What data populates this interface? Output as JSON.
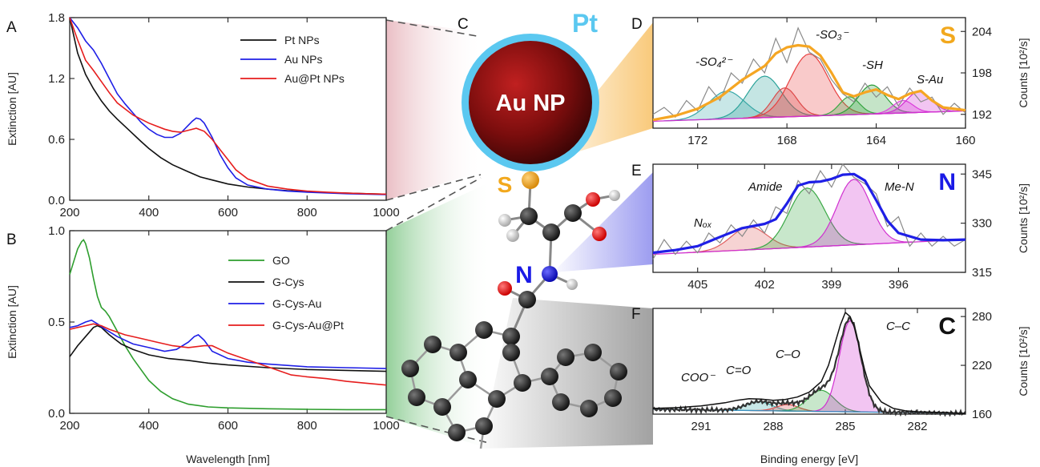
{
  "panels": {
    "A": "A",
    "B": "B",
    "C": "C",
    "D": "D",
    "E": "E",
    "F": "F"
  },
  "schematic": {
    "core_label": "Au NP",
    "shell_label": "Pt",
    "sulfur_label": "S",
    "nitrogen_label": "N",
    "colors": {
      "core": "#8b1010",
      "shell": "#5bc8f0",
      "sulfur": "#f2a81d",
      "nitrogen": "#1a1ae6",
      "oxygen": "#e61515",
      "carbon": "#2a2a2a",
      "hydrogen": "#d9d9d9"
    }
  },
  "chart_data": [
    {
      "id": "A",
      "type": "line",
      "xlabel": "",
      "ylabel": "Extinction [AU]",
      "xlim": [
        200,
        1000
      ],
      "ylim": [
        0,
        1.8
      ],
      "xticks": [
        200,
        400,
        600,
        800,
        1000
      ],
      "yticks": [
        0.0,
        0.6,
        1.2,
        1.8
      ],
      "ytick_labels": [
        "0.0",
        "0.6",
        "1.2",
        "1.8"
      ],
      "legend_position": "top-right",
      "series": [
        {
          "name": "Pt NPs",
          "color": "#111111",
          "x": [
            200,
            220,
            240,
            260,
            280,
            300,
            320,
            350,
            380,
            400,
            430,
            460,
            500,
            530,
            560,
            600,
            650,
            700,
            750,
            800,
            850,
            900,
            950,
            1000
          ],
          "y": [
            1.8,
            1.45,
            1.24,
            1.1,
            0.98,
            0.88,
            0.8,
            0.69,
            0.58,
            0.51,
            0.42,
            0.35,
            0.28,
            0.23,
            0.2,
            0.16,
            0.13,
            0.11,
            0.095,
            0.085,
            0.075,
            0.07,
            0.065,
            0.06
          ]
        },
        {
          "name": "Au NPs",
          "color": "#1f1fe6",
          "x": [
            200,
            220,
            240,
            260,
            280,
            300,
            320,
            340,
            360,
            380,
            400,
            420,
            440,
            460,
            480,
            500,
            510,
            520,
            530,
            540,
            560,
            580,
            600,
            620,
            650,
            700,
            750,
            800,
            900,
            1000
          ],
          "y": [
            1.8,
            1.7,
            1.57,
            1.48,
            1.35,
            1.2,
            1.05,
            0.95,
            0.86,
            0.77,
            0.7,
            0.65,
            0.62,
            0.62,
            0.66,
            0.74,
            0.78,
            0.81,
            0.8,
            0.76,
            0.62,
            0.45,
            0.32,
            0.22,
            0.15,
            0.11,
            0.09,
            0.08,
            0.065,
            0.055
          ]
        },
        {
          "name": "Au@Pt NPs",
          "color": "#e61d1d",
          "x": [
            200,
            220,
            240,
            260,
            280,
            300,
            320,
            340,
            360,
            380,
            400,
            420,
            440,
            460,
            480,
            500,
            520,
            540,
            560,
            580,
            600,
            620,
            650,
            700,
            750,
            800,
            850,
            900,
            950,
            1000
          ],
          "y": [
            1.8,
            1.58,
            1.38,
            1.28,
            1.17,
            1.06,
            0.96,
            0.9,
            0.84,
            0.8,
            0.76,
            0.73,
            0.7,
            0.68,
            0.67,
            0.69,
            0.71,
            0.68,
            0.6,
            0.5,
            0.4,
            0.3,
            0.21,
            0.14,
            0.11,
            0.09,
            0.08,
            0.07,
            0.065,
            0.06
          ]
        }
      ]
    },
    {
      "id": "B",
      "type": "line",
      "xlabel": "Wavelength [nm]",
      "ylabel": "Extinction [AU]",
      "xlim": [
        200,
        1000
      ],
      "ylim": [
        0,
        1.0
      ],
      "xticks": [
        200,
        400,
        600,
        800,
        1000
      ],
      "yticks": [
        0.0,
        0.5,
        1.0
      ],
      "ytick_labels": [
        "0.0",
        "0.5",
        "1.0"
      ],
      "legend_position": "right",
      "series": [
        {
          "name": "GO",
          "color": "#2e9e2e",
          "x": [
            200,
            210,
            220,
            230,
            235,
            240,
            250,
            260,
            270,
            280,
            290,
            300,
            320,
            340,
            360,
            380,
            400,
            430,
            460,
            500,
            550,
            600,
            700,
            800,
            900,
            1000
          ],
          "y": [
            0.76,
            0.83,
            0.9,
            0.94,
            0.95,
            0.93,
            0.85,
            0.74,
            0.64,
            0.58,
            0.56,
            0.53,
            0.45,
            0.37,
            0.3,
            0.24,
            0.18,
            0.12,
            0.08,
            0.05,
            0.035,
            0.03,
            0.025,
            0.022,
            0.02,
            0.02
          ]
        },
        {
          "name": "G-Cys",
          "color": "#111111",
          "x": [
            200,
            220,
            240,
            260,
            270,
            280,
            300,
            330,
            360,
            400,
            450,
            500,
            550,
            600,
            700,
            800,
            900,
            1000
          ],
          "y": [
            0.31,
            0.37,
            0.42,
            0.47,
            0.48,
            0.47,
            0.43,
            0.38,
            0.35,
            0.32,
            0.3,
            0.29,
            0.275,
            0.265,
            0.25,
            0.24,
            0.235,
            0.23
          ]
        },
        {
          "name": "G-Cys-Au",
          "color": "#1f1fe6",
          "x": [
            200,
            220,
            240,
            255,
            270,
            290,
            320,
            360,
            400,
            440,
            470,
            500,
            515,
            525,
            540,
            560,
            600,
            650,
            700,
            800,
            900,
            1000
          ],
          "y": [
            0.47,
            0.48,
            0.5,
            0.51,
            0.49,
            0.46,
            0.42,
            0.38,
            0.36,
            0.34,
            0.35,
            0.39,
            0.42,
            0.43,
            0.4,
            0.34,
            0.3,
            0.28,
            0.27,
            0.255,
            0.25,
            0.245
          ]
        },
        {
          "name": "G-Cys-Au@Pt",
          "color": "#e61d1d",
          "x": [
            200,
            220,
            240,
            260,
            280,
            300,
            340,
            380,
            420,
            460,
            500,
            540,
            560,
            580,
            600,
            640,
            680,
            720,
            760,
            800,
            850,
            900,
            950,
            1000
          ],
          "y": [
            0.46,
            0.47,
            0.48,
            0.49,
            0.48,
            0.46,
            0.43,
            0.41,
            0.39,
            0.37,
            0.36,
            0.37,
            0.37,
            0.35,
            0.33,
            0.3,
            0.27,
            0.24,
            0.21,
            0.2,
            0.19,
            0.175,
            0.165,
            0.155
          ]
        }
      ]
    },
    {
      "id": "D",
      "type": "line",
      "xlabel": "",
      "ylabel": "Counts [10²/s]",
      "xlim": [
        174,
        160
      ],
      "ylim": [
        190,
        206
      ],
      "xticks": [
        172,
        168,
        164,
        160
      ],
      "yticks": [
        192,
        198,
        204
      ],
      "element_label": "S",
      "annotations": [
        "-SO₄²⁻",
        "-SO₃⁻",
        "-SH",
        "S-Au"
      ],
      "background": {
        "x": [
          174,
          160
        ],
        "y": [
          191.0,
          192.5
        ]
      },
      "envelope": {
        "color": "#f5a623",
        "x": [
          174,
          173,
          172,
          171,
          170,
          169,
          168.5,
          168,
          167.5,
          167,
          166.5,
          166,
          165.5,
          165,
          164.5,
          164,
          163.5,
          163,
          162.5,
          162,
          161.5,
          161,
          160
        ],
        "y": [
          191.2,
          191.8,
          192.8,
          194.5,
          197,
          199,
          200.8,
          201.7,
          202,
          201.8,
          200.5,
          198,
          195.2,
          194.6,
          195.2,
          195.6,
          194.8,
          194.2,
          195,
          195.4,
          194,
          193,
          192.6
        ]
      },
      "peaks": [
        {
          "center": 170.7,
          "sigma": 0.8,
          "height": 4.0,
          "color": "#3aa8a8"
        },
        {
          "center": 169.0,
          "sigma": 0.75,
          "height": 6.0,
          "color": "#2ca39a"
        },
        {
          "center": 168.1,
          "sigma": 0.55,
          "height": 4.2,
          "color": "#d94a4a"
        },
        {
          "center": 167.0,
          "sigma": 0.85,
          "height": 9.0,
          "color": "#e84040"
        },
        {
          "center": 165.2,
          "sigma": 0.45,
          "height": 2.6,
          "color": "#3aa845"
        },
        {
          "center": 164.2,
          "sigma": 0.6,
          "height": 4.2,
          "color": "#2e9e3a"
        },
        {
          "center": 162.8,
          "sigma": 0.45,
          "height": 1.8,
          "color": "#e040e0"
        },
        {
          "center": 162.1,
          "sigma": 0.55,
          "height": 3.0,
          "color": "#d030d0"
        }
      ],
      "raw": {
        "color": "#8a8a8a",
        "x": [
          174,
          173.5,
          173,
          172.5,
          172,
          171.5,
          171,
          170.5,
          170,
          169.5,
          169,
          168.5,
          168,
          167.5,
          167,
          166.5,
          166,
          165.5,
          165,
          164.5,
          164,
          163.5,
          163,
          162.5,
          162,
          161.5,
          161,
          160.5,
          160
        ],
        "y": [
          192,
          193,
          191.6,
          194,
          192.5,
          196,
          194,
          198,
          196.5,
          200,
          198,
          203,
          199.5,
          204.5,
          201,
          200,
          197,
          195,
          193.8,
          196.5,
          194.5,
          196,
          193.2,
          195.8,
          193.8,
          194.5,
          192,
          193.6,
          192.2
        ]
      }
    },
    {
      "id": "E",
      "type": "line",
      "xlabel": "",
      "ylabel": "Counts [10²/s]",
      "xlim": [
        407,
        393
      ],
      "ylim": [
        315,
        348
      ],
      "xticks": [
        405,
        402,
        399,
        396
      ],
      "yticks": [
        315,
        330,
        345
      ],
      "element_label": "N",
      "annotations": [
        "Nₒₓ",
        "Amide",
        "Me-N"
      ],
      "background": {
        "x": [
          407,
          393
        ],
        "y": [
          320.5,
          325
        ]
      },
      "envelope": {
        "color": "#1f1fe6",
        "x": [
          407,
          406,
          405,
          404,
          403,
          402,
          401.5,
          401,
          400.5,
          400,
          399.5,
          399,
          398.5,
          398,
          397.5,
          397,
          396.5,
          396,
          395,
          394,
          393
        ],
        "y": [
          321,
          321.8,
          323,
          325.8,
          328.5,
          329.8,
          331.2,
          336,
          341.5,
          342.5,
          342.7,
          343.5,
          344.8,
          345,
          343,
          337,
          330.8,
          327,
          325,
          324.8,
          325
        ]
      },
      "peaks": [
        {
          "center": 402.7,
          "sigma": 0.8,
          "height": 7.0,
          "color": "#e06060"
        },
        {
          "center": 400.1,
          "sigma": 0.8,
          "height": 18.0,
          "color": "#3aa845"
        },
        {
          "center": 398.0,
          "sigma": 0.75,
          "height": 20.0,
          "color": "#d030d0"
        }
      ],
      "raw": {
        "color": "#8a8a8a",
        "x": [
          407,
          406.5,
          406,
          405.5,
          405,
          404.5,
          404,
          403.5,
          403,
          402.5,
          402,
          401.5,
          401,
          400.5,
          400,
          399.5,
          399,
          398.5,
          398,
          397.5,
          397,
          396.5,
          396,
          395.5,
          395,
          394.5,
          394,
          393.5,
          393
        ],
        "y": [
          319,
          325,
          320.5,
          324.5,
          321,
          327,
          324,
          329.5,
          326,
          331,
          327,
          335,
          333,
          343,
          339,
          346,
          341,
          348,
          344,
          342,
          339,
          329,
          332,
          323,
          327,
          323,
          326,
          323,
          325
        ]
      }
    },
    {
      "id": "F",
      "type": "line",
      "xlabel": "Binding energy [eV]",
      "ylabel": "Counts [10²/s]",
      "xlim": [
        293,
        280
      ],
      "ylim": [
        160,
        290
      ],
      "xticks": [
        291,
        288,
        285,
        282
      ],
      "yticks": [
        160,
        220,
        280
      ],
      "element_label": "C",
      "annotations": [
        "COO⁻",
        "C=O",
        "C–O",
        "C–C"
      ],
      "background": {
        "x": [
          293,
          280
        ],
        "y": [
          166,
          161
        ]
      },
      "envelope": {
        "color": "#111111",
        "x": [
          293,
          292,
          291,
          290,
          289.5,
          289,
          288.5,
          288,
          287.5,
          287,
          286.5,
          286,
          285.7,
          285.4,
          285.2,
          285,
          284.8,
          284.6,
          284.4,
          284.2,
          284,
          283.5,
          283,
          282.5,
          282,
          281,
          280
        ],
        "y": [
          167,
          168,
          170,
          174,
          177,
          179,
          178.5,
          177,
          178,
          181,
          187,
          200,
          220,
          250,
          270,
          285,
          280,
          265,
          240,
          215,
          195,
          175,
          167,
          164,
          163,
          162,
          161
        ]
      },
      "peaks": [
        {
          "center": 288.6,
          "sigma": 0.55,
          "height": 11.0,
          "color": "#3aa8a8"
        },
        {
          "center": 287.4,
          "sigma": 0.45,
          "height": 8.0,
          "color": "#d94a4a"
        },
        {
          "center": 286.0,
          "sigma": 0.55,
          "height": 26.0,
          "color": "#3aa845"
        },
        {
          "center": 284.8,
          "sigma": 0.45,
          "height": 112.0,
          "color": "#d030d0"
        }
      ],
      "raw": {
        "color": "#333333",
        "x": [],
        "y": []
      }
    }
  ]
}
